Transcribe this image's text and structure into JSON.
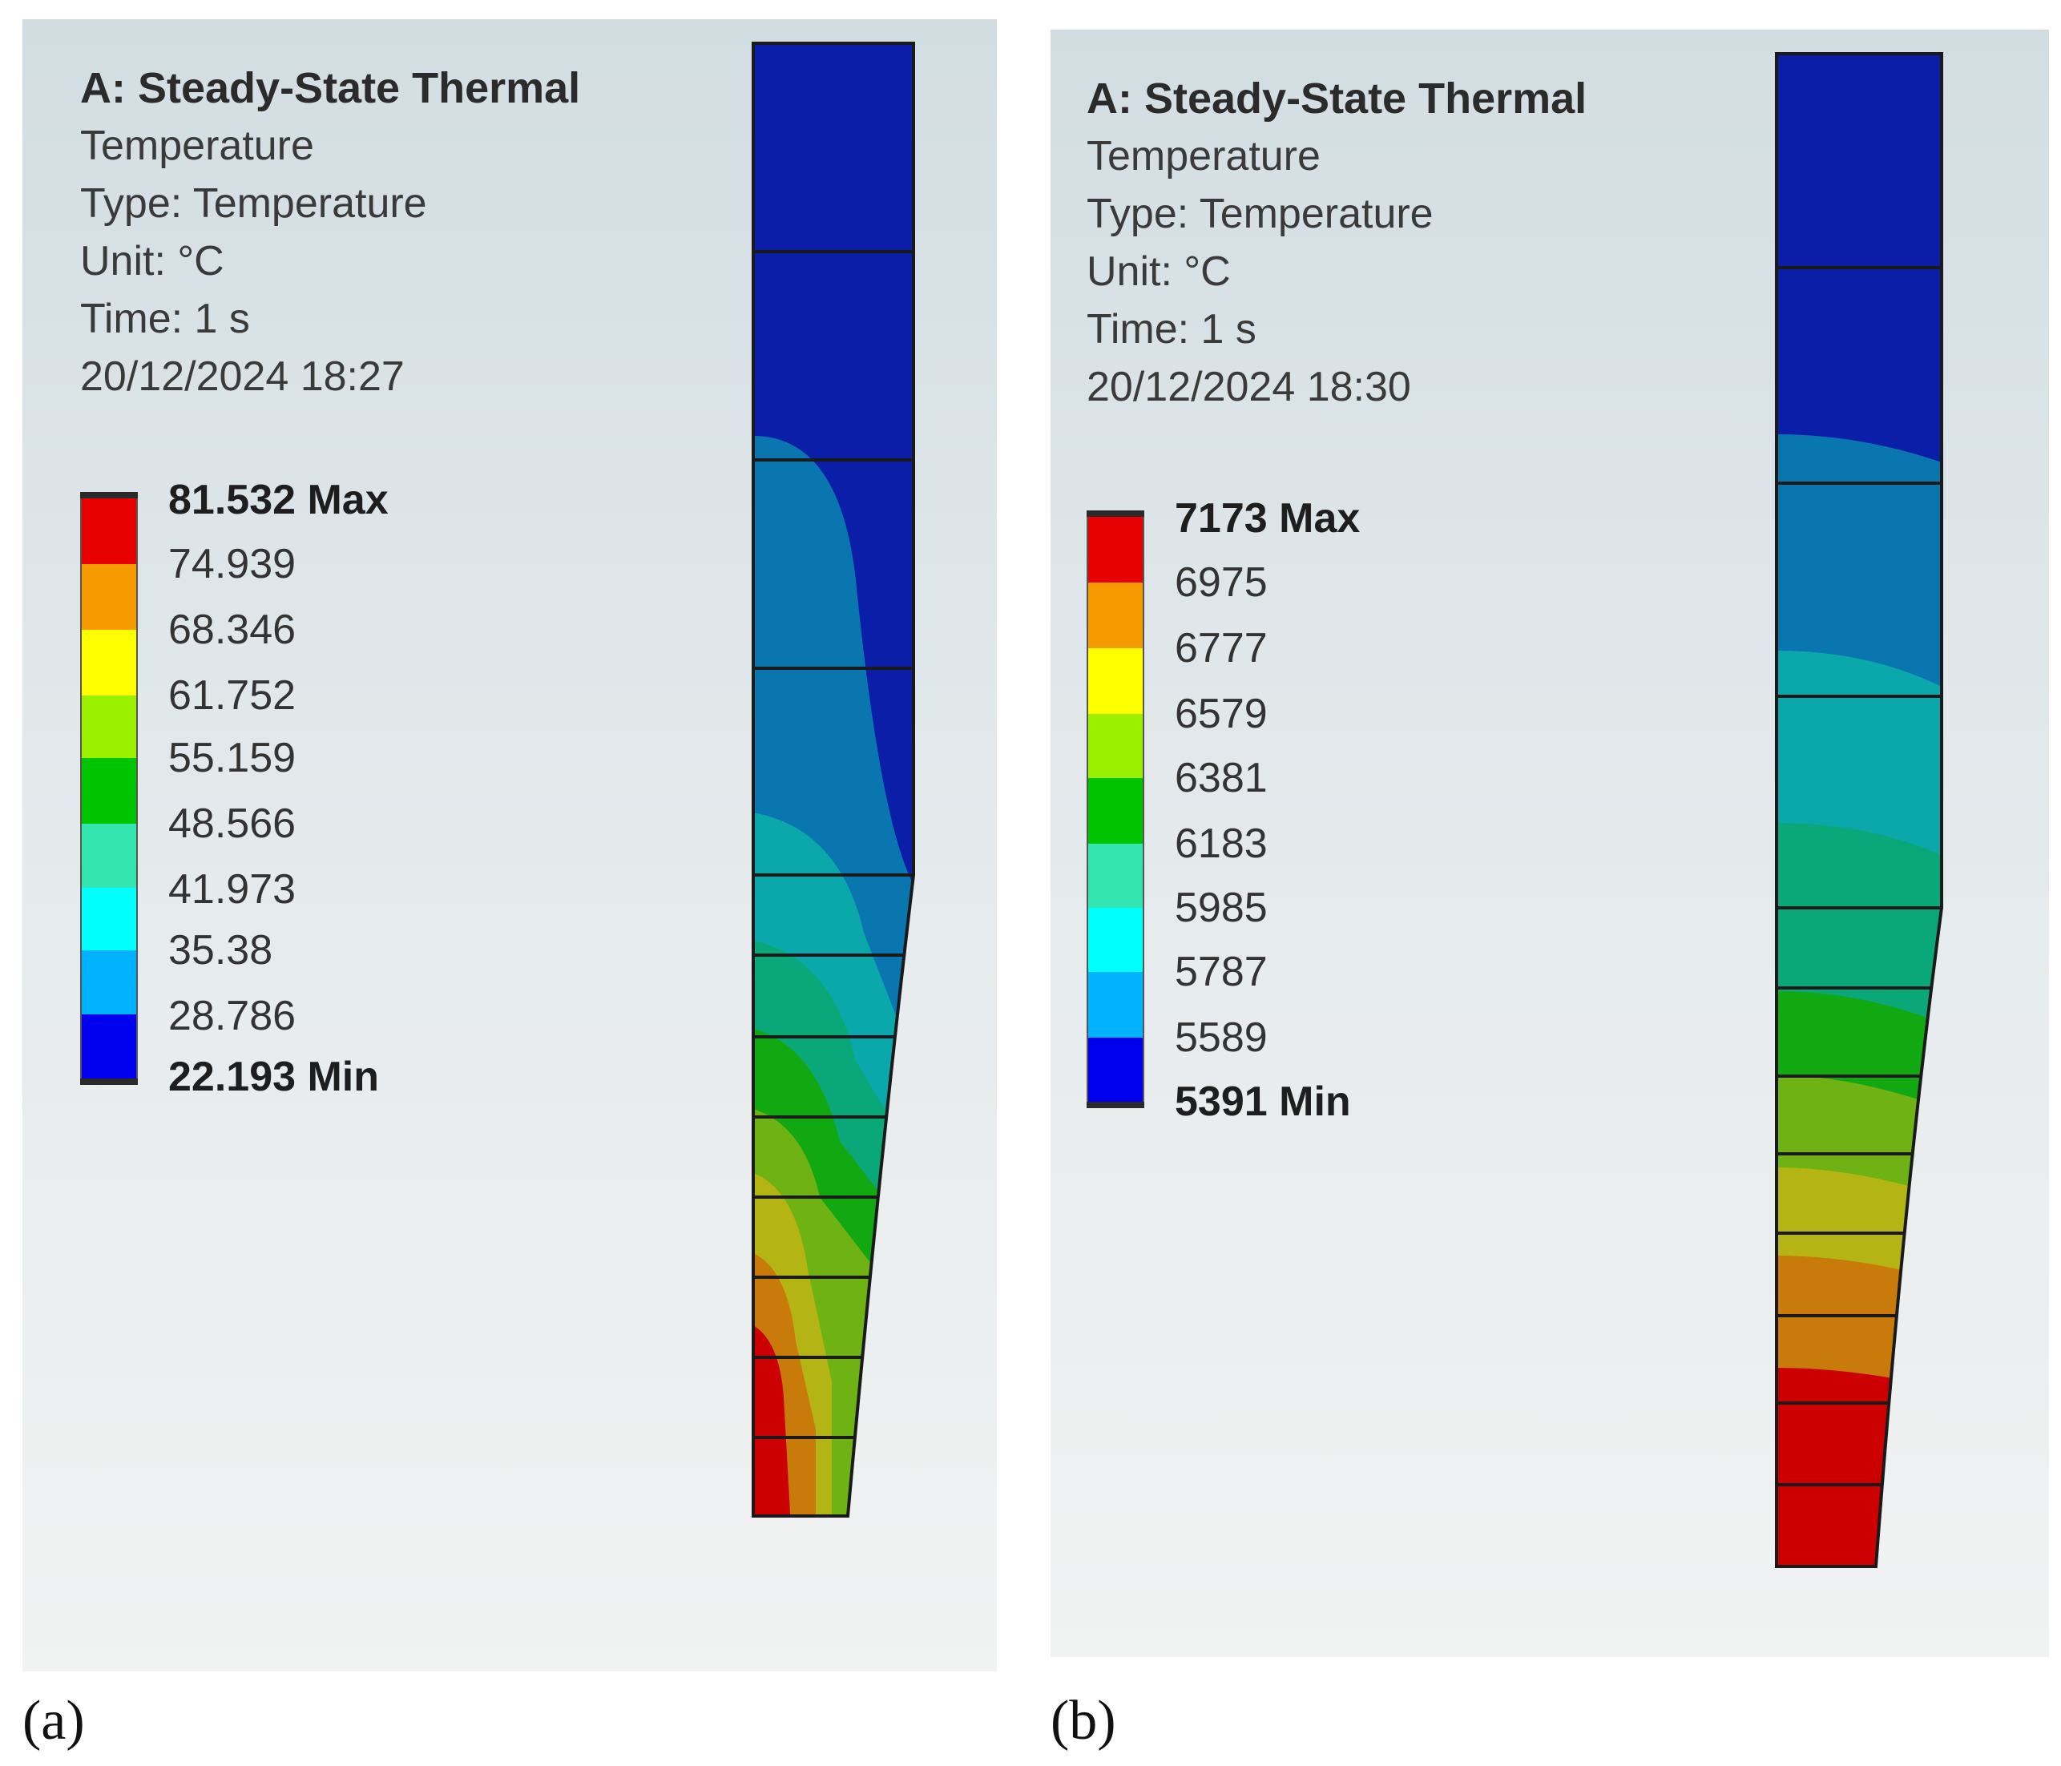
{
  "panels": [
    {
      "id": "a",
      "title": "A: Steady-State Thermal",
      "result": "Temperature",
      "type": "Type: Temperature",
      "unit": "Unit: °C",
      "time": "Time: 1 s",
      "datetime": "20/12/2024 18:27",
      "legend": {
        "max": "81.532 Max",
        "levels": [
          "74.939",
          "68.346",
          "61.752",
          "55.159",
          "48.566",
          "41.973",
          "35.38",
          "28.786"
        ],
        "min": "22.193 Min"
      },
      "caption": "(a)"
    },
    {
      "id": "b",
      "title": "A: Steady-State Thermal",
      "result": "Temperature",
      "type": "Type: Temperature",
      "unit": "Unit: °C",
      "time": "Time: 1 s",
      "datetime": "20/12/2024 18:30",
      "legend": {
        "max": "7173 Max",
        "levels": [
          "6975",
          "6777",
          "6579",
          "6381",
          "6183",
          "5985",
          "5787",
          "5589"
        ],
        "min": "5391 Min"
      },
      "caption": "(b)"
    }
  ],
  "colors": {
    "contour_scale": [
      "#e60000",
      "#f59a00",
      "#ffff00",
      "#9bf000",
      "#00c400",
      "#33e6b0",
      "#00ffff",
      "#00b2ff",
      "#0000ee"
    ],
    "model_blue": "#0b1ea8",
    "model_steel": "#0a76b0",
    "model_teal": "#0aa8aa",
    "model_seagreen": "#0aa878",
    "model_green": "#12a812",
    "model_yellowgreen": "#6eb214",
    "model_olive": "#b4b414",
    "model_orange": "#c87a0a",
    "model_red": "#cc0000"
  }
}
